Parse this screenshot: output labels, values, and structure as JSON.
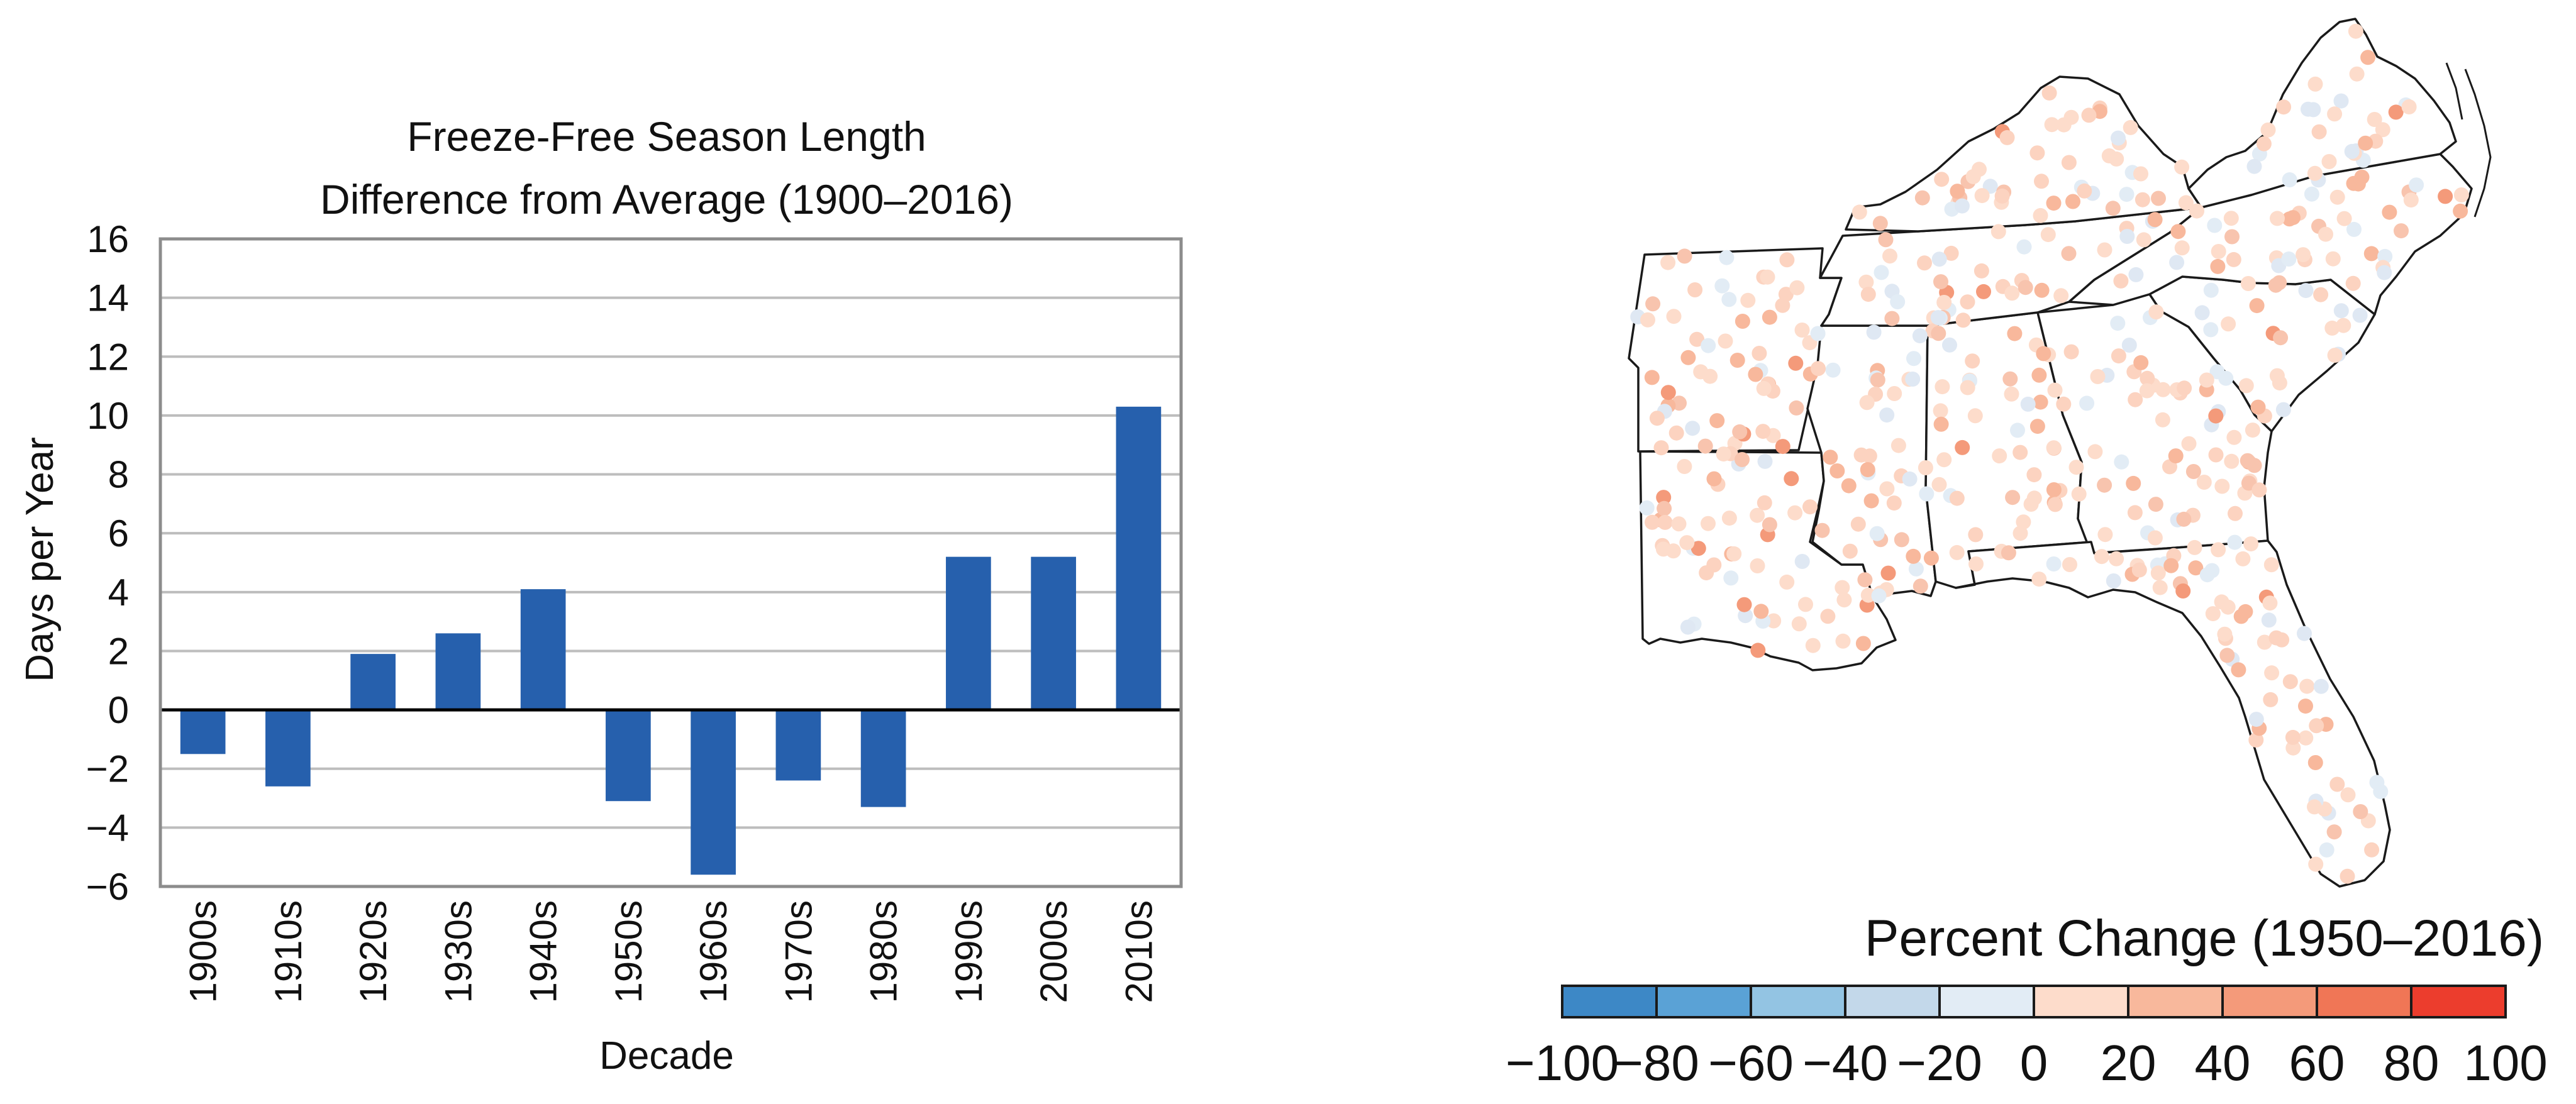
{
  "chart_data": [
    {
      "type": "bar",
      "title": "Freeze-Free Season Length",
      "subtitle": "Difference from Average (1900–2016)",
      "xlabel": "Decade",
      "ylabel": "Days per Year",
      "categories": [
        "1900s",
        "1910s",
        "1920s",
        "1930s",
        "1940s",
        "1950s",
        "1960s",
        "1970s",
        "1980s",
        "1990s",
        "2000s",
        "2010s"
      ],
      "values": [
        -1.5,
        -2.6,
        1.9,
        2.6,
        4.1,
        -3.1,
        -5.6,
        -2.4,
        -3.3,
        5.2,
        5.2,
        10.3
      ],
      "ylim": [
        -6,
        16
      ],
      "yticks": [
        16,
        14,
        12,
        10,
        8,
        6,
        4,
        2,
        0,
        -2,
        -4,
        -6
      ],
      "ytick_labels": [
        "16",
        "14",
        "12",
        "10",
        "8",
        "6",
        "4",
        "2",
        "0",
        "−2",
        "−4",
        "−6"
      ],
      "grid": true,
      "bar_color": "#2660ad"
    },
    {
      "type": "map",
      "region": "Southeast United States",
      "legend_title": "Percent Change (1950–2016)",
      "legend_ticks": [
        "−100",
        "−80",
        "−60",
        "−40",
        "−20",
        "0",
        "20",
        "40",
        "60",
        "80",
        "100"
      ],
      "legend_colors": [
        "#3d88c6",
        "#5aa2d6",
        "#93c4e3",
        "#c3d8ea",
        "#e2ecf5",
        "#fddccb",
        "#f8b89c",
        "#f49a7a",
        "#f07656",
        "#ec3d2d"
      ]
    }
  ]
}
